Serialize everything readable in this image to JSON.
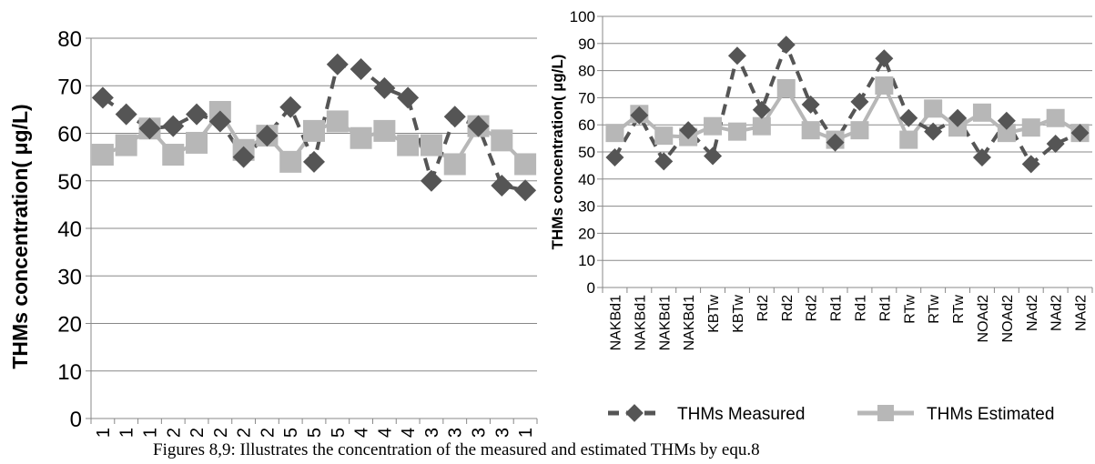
{
  "caption": "Figures 8,9: Illustrates the concentration of the measured and estimated THMs by equ.8",
  "legend": {
    "measured": "THMs Measured",
    "estimated": "THMs Estimated"
  },
  "colors": {
    "measured": "#555555",
    "estimated": "#b7b7b7",
    "grid": "#888888"
  },
  "chart_data": [
    {
      "type": "line",
      "ylabel": "THMs concentration( μg/L)",
      "ylim": [
        0,
        80
      ],
      "yticks": [
        0,
        10,
        20,
        30,
        40,
        50,
        60,
        70,
        80
      ],
      "categories": [
        "1",
        "1",
        "1",
        "2",
        "2",
        "2",
        "2",
        "2",
        "5",
        "5",
        "5",
        "4",
        "4",
        "4",
        "3",
        "3",
        "3",
        "3",
        "1"
      ],
      "series": [
        {
          "name": "THMs Measured",
          "values": [
            67.5,
            64,
            61,
            61.5,
            64,
            62.5,
            55,
            59.5,
            65.5,
            54,
            74.5,
            73.5,
            69.5,
            67.5,
            50,
            63.5,
            61.5,
            49,
            48
          ]
        },
        {
          "name": "THMs Estimated",
          "values": [
            55.5,
            57.5,
            61,
            55.5,
            58,
            64.5,
            56.5,
            59.5,
            54,
            60.5,
            62.5,
            59,
            60.5,
            57.5,
            57.5,
            53.5,
            61.5,
            58.5,
            53.5
          ]
        }
      ],
      "grid": true
    },
    {
      "type": "line",
      "ylabel": "THMs concentration( µg/L)",
      "ylim": [
        0,
        100
      ],
      "yticks": [
        0,
        10,
        20,
        30,
        40,
        50,
        60,
        70,
        80,
        90,
        100
      ],
      "categories": [
        "NAKBd1",
        "NAKBd1",
        "NAKBd1",
        "NAKBd1",
        "KBTw",
        "KBTw",
        "Rd2",
        "Rd2",
        "Rd2",
        "Rd1",
        "Rd1",
        "Rd1",
        "RTw",
        "RTw",
        "RTw",
        "NOAd2",
        "NOAd2",
        "NAd2",
        "NAd2",
        "NAd2"
      ],
      "series": [
        {
          "name": "THMs Measured",
          "values": [
            48,
            63.5,
            46.5,
            58,
            48.5,
            85.5,
            65.5,
            89.5,
            67.5,
            53.5,
            68.5,
            84.5,
            62.5,
            57.5,
            62.5,
            48,
            61.5,
            45.5,
            53,
            57
          ]
        },
        {
          "name": "THMs Estimated",
          "values": [
            57,
            64,
            56,
            55.5,
            59.5,
            57.5,
            59.5,
            73.5,
            58,
            54.5,
            58,
            74.5,
            54.5,
            66,
            59,
            64.5,
            57,
            59,
            62.5,
            57
          ]
        }
      ],
      "grid": true,
      "legend": "bottom"
    }
  ]
}
